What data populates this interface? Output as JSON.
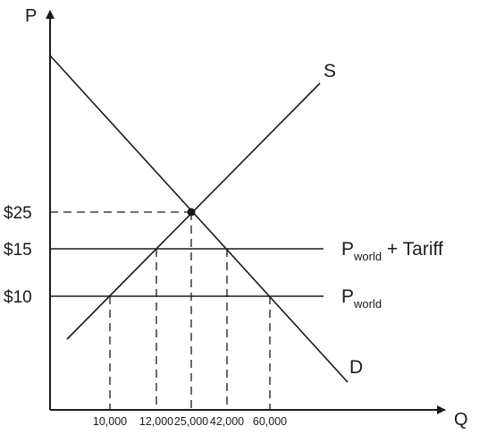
{
  "chart_data": {
    "type": "line",
    "title": "",
    "xlabel": "Q",
    "ylabel": "P",
    "x_ticks": [
      {
        "value": 10000,
        "label": "10,000"
      },
      {
        "value": 12000,
        "label": "12,000"
      },
      {
        "value": 25000,
        "label": "25,000"
      },
      {
        "value": 42000,
        "label": "42,000"
      },
      {
        "value": 60000,
        "label": "60,000"
      }
    ],
    "y_ticks": [
      {
        "value": 10,
        "label": "$10"
      },
      {
        "value": 15,
        "label": "$15"
      },
      {
        "value": 25,
        "label": "$25"
      }
    ],
    "series": [
      {
        "name": "S",
        "points": [
          [
            10000,
            10
          ],
          [
            12000,
            15
          ],
          [
            25000,
            25
          ]
        ],
        "color": "#1a1a1a"
      },
      {
        "name": "D",
        "points": [
          [
            25000,
            25
          ],
          [
            42000,
            15
          ],
          [
            60000,
            10
          ]
        ],
        "color": "#1a1a1a"
      }
    ],
    "horizontal_lines": [
      {
        "price": 15,
        "label_main": "P",
        "label_sub": "world",
        "label_suffix": " + Tariff"
      },
      {
        "price": 10,
        "label_main": "P",
        "label_sub": "world",
        "label_suffix": ""
      }
    ],
    "equilibrium": {
      "q": 25000,
      "p": 25
    },
    "grid": false,
    "legend": "none"
  }
}
